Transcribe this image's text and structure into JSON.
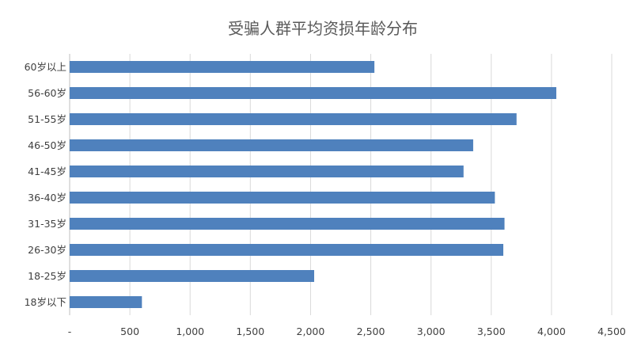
{
  "chart_data": {
    "type": "bar",
    "orientation": "horizontal",
    "title": "受骗人群平均资损年龄分布",
    "xlabel": "",
    "ylabel": "",
    "categories": [
      "60岁以上",
      "56-60岁",
      "51-55岁",
      "46-50岁",
      "41-45岁",
      "36-40岁",
      "31-35岁",
      "26-30岁",
      "18-25岁",
      "18岁以下"
    ],
    "values": [
      2530,
      4040,
      3710,
      3350,
      3270,
      3530,
      3610,
      3600,
      2030,
      600
    ],
    "xlim": [
      0,
      4500
    ],
    "x_ticks": [
      "-",
      "500",
      "1,000",
      "1,500",
      "2,000",
      "2,500",
      "3,000",
      "3,500",
      "4,000",
      "4,500"
    ],
    "grid": "vertical",
    "legend": "none",
    "bar_color": "#4f81bd"
  }
}
